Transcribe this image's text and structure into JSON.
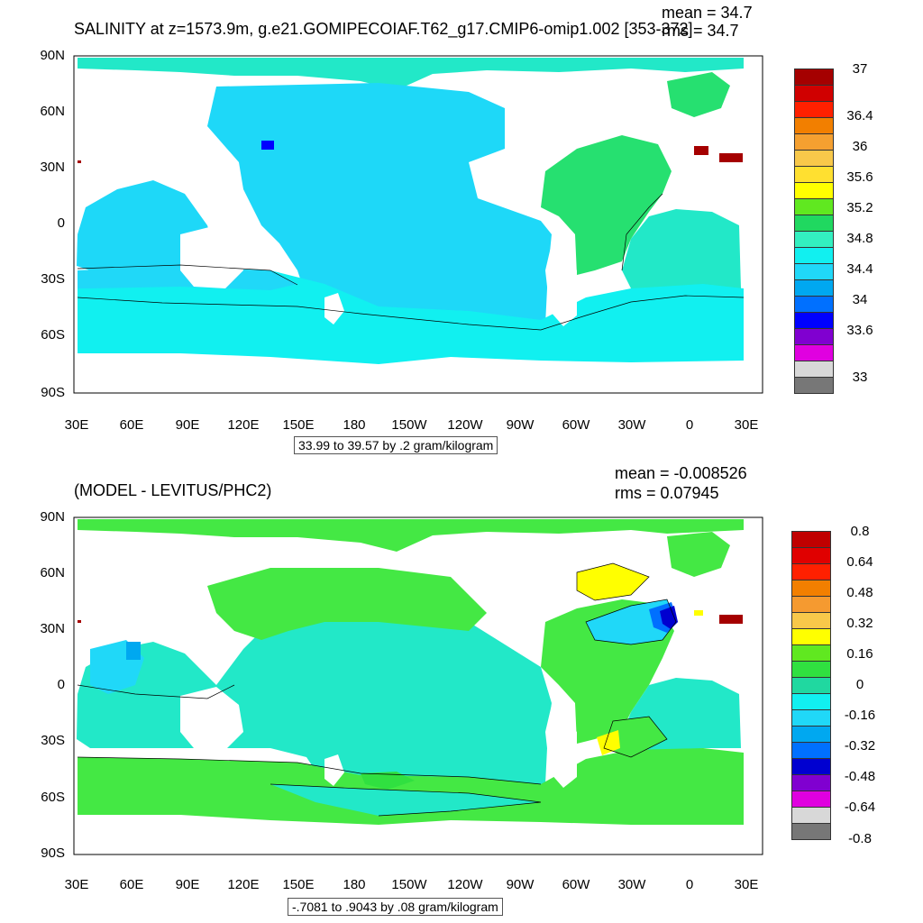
{
  "panels": [
    {
      "title": "SALINITY at z=1573.9m, g.e21.GOMIPECOIAF.T62_g17.CMIP6-omip1.002 [353-372]",
      "stats": {
        "mean": "mean = 34.7",
        "rms": "rms = 34.7"
      },
      "range_label": "33.99 to 39.57 by .2 gram/kilogram",
      "lat_labels": [
        "90N",
        "60N",
        "30N",
        "0",
        "30S",
        "60S",
        "90S"
      ],
      "lon_labels": [
        "30E",
        "60E",
        "90E",
        "120E",
        "150E",
        "180",
        "150W",
        "120W",
        "90W",
        "60W",
        "30W",
        "0",
        "30E"
      ],
      "colorbar": {
        "labels": [
          "37",
          "36.4",
          "36",
          "35.6",
          "35.2",
          "34.8",
          "34.4",
          "34",
          "33.6",
          "33"
        ],
        "colors": [
          "#a50000",
          "#d00000",
          "#ff2000",
          "#f27f00",
          "#f5a030",
          "#f8c84a",
          "#ffe030",
          "#ffff00",
          "#60e820",
          "#20d860",
          "#33f0c0",
          "#11f0f0",
          "#20d8f8",
          "#00a8f0",
          "#0070ff",
          "#0000ff",
          "#8000d0",
          "#e000e0",
          "#d8d8d8",
          "#777777"
        ]
      }
    },
    {
      "title": "(MODEL - LEVITUS/PHC2)",
      "stats": {
        "mean": "mean = -0.008526",
        "rms": "rms = 0.07945"
      },
      "range_label": "-.7081 to .9043 by .08 gram/kilogram",
      "lat_labels": [
        "90N",
        "60N",
        "30N",
        "0",
        "30S",
        "60S",
        "90S"
      ],
      "lon_labels": [
        "30E",
        "60E",
        "90E",
        "120E",
        "150E",
        "180",
        "150W",
        "120W",
        "90W",
        "60W",
        "30W",
        "0",
        "30E"
      ],
      "colorbar": {
        "labels": [
          "0.8",
          "0.64",
          "0.48",
          "0.32",
          "0.16",
          "0",
          "-0.16",
          "-0.32",
          "-0.48",
          "-0.64",
          "-0.8"
        ],
        "colors": [
          "#c00000",
          "#e00000",
          "#ff2000",
          "#f27f00",
          "#f59a30",
          "#f8c84a",
          "#ffff00",
          "#60e820",
          "#30e040",
          "#20d8a0",
          "#11f0f0",
          "#20d8f8",
          "#00a8f0",
          "#0070ff",
          "#0000d0",
          "#8000d0",
          "#e000e0",
          "#d8d8d8",
          "#777777"
        ]
      }
    }
  ]
}
